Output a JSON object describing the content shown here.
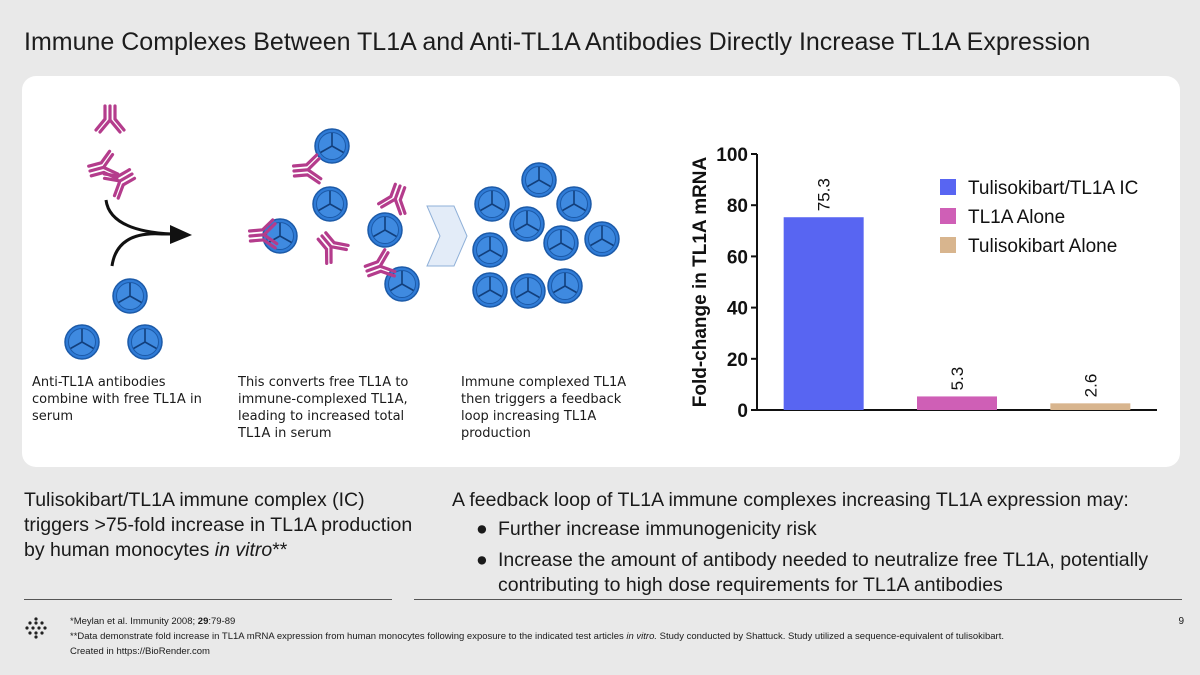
{
  "slide": {
    "title": "Immune Complexes Between TL1A and Anti-TL1A Antibodies Directly Increase TL1A Expression",
    "page_number": "9"
  },
  "illustration": {
    "steps": [
      {
        "caption": "Anti-TL1A antibodies combine with free TL1A in serum"
      },
      {
        "caption": "This converts free TL1A to immune-complexed TL1A, leading to increased total TL1A in serum"
      },
      {
        "caption": "Immune complexed TL1A then triggers a feedback loop increasing TL1A production"
      }
    ],
    "colors": {
      "antibody": "#b43c8c",
      "tl1a": "#2f7bd6"
    }
  },
  "chart_data": {
    "type": "bar",
    "categories": [
      "Tulisokibart/TL1A IC",
      "TL1A Alone",
      "Tulisokibart Alone"
    ],
    "values": [
      75.3,
      5.3,
      2.6
    ],
    "value_labels": [
      "75.3",
      "5.3",
      "2.6"
    ],
    "colors": [
      "#5865f2",
      "#cf5fb6",
      "#d8b58e"
    ],
    "ylabel": "Fold-change in TL1A mRNA",
    "ylim": [
      0,
      100
    ],
    "yticks": [
      0,
      20,
      40,
      60,
      80,
      100
    ],
    "legend": "top-right",
    "grid": false
  },
  "left_summary": {
    "text": "Tulisokibart/TL1A immune complex (IC) triggers >75-fold increase in TL1A production by human monocytes ",
    "italic": "in vitro",
    "suffix": "**"
  },
  "right_summary": {
    "lead": "A feedback loop of TL1A immune complexes increasing TL1A expression may:",
    "bullets": [
      "Further increase immunogenicity risk",
      "Increase the amount of antibody needed to neutralize free TL1A, potentially contributing to high dose requirements for TL1A antibodies"
    ],
    "bullet_glyph": "●"
  },
  "footnotes": {
    "ref_prefix": "*Meylan et al. Immunity 2008; ",
    "ref_volume": "29",
    "ref_pages": ":79-89",
    "note_pre": "**Data demonstrate fold increase in TL1A mRNA expression from human monocytes following exposure to the indicated test articles ",
    "note_italic": "in vitro.",
    "note_post": " Study conducted by Shattuck. Study utilized a sequence-equivalent of tulisokibart.",
    "credit": "Created in  https://BioRender.com"
  },
  "icons": {
    "logo": "dot-grid-logo-icon",
    "arrow": "curved-arrow-icon",
    "chevron": "chevron-right-icon"
  }
}
